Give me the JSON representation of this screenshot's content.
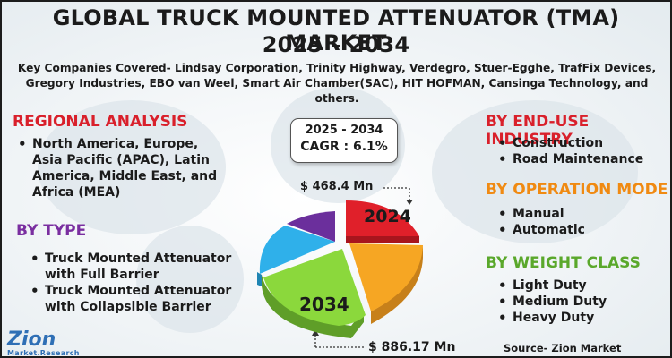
{
  "header": {
    "title_line1": "GLOBAL TRUCK MOUNTED ATTENUATOR (TMA) MARKET",
    "title_line2": "2025 – 2034",
    "companies": "Key Companies Covered- Lindsay Corporation, Trinity Highway, Verdegro, Stuer-Egghe, TrafFix Devices, Gregory Industries, EBO van Weel, Smart Air Chamber(SAC), HIT HOFMAN, Cansinga Technology, and others."
  },
  "regional": {
    "heading": "REGIONAL ANALYSIS",
    "items": [
      "North America, Europe, Asia Pacific (APAC), Latin America, Middle East, and Africa (MEA)"
    ]
  },
  "by_type": {
    "heading": "BY TYPE",
    "items": [
      "Truck Mounted Attenuator with Full Barrier",
      "Truck Mounted Attenuator with Collapsible Barrier"
    ]
  },
  "end_use": {
    "heading": "BY END-USE INDUSTRY",
    "items": [
      "Construction",
      "Road Maintenance"
    ]
  },
  "operation": {
    "heading": "BY OPERATION MODE",
    "items": [
      "Manual",
      "Automatic"
    ]
  },
  "weight": {
    "heading": "BY WEIGHT CLASS",
    "items": [
      "Light Duty",
      "Medium Duty",
      "Heavy Duty"
    ]
  },
  "cagr": {
    "period": "2025 - 2034",
    "value": "CAGR : 6.1%"
  },
  "pie": {
    "label_2024": "2024",
    "label_2034": "2034",
    "value_2024": "$ 468.4 Mn",
    "value_2034": "$ 886.17 Mn",
    "colors": [
      "#e0202a",
      "#f6a623",
      "#8bd83c",
      "#2fb0ea",
      "#6b2f9c"
    ]
  },
  "logo": {
    "main": "Zion",
    "sub": "Market.Research"
  },
  "source": "Source- Zion Market Research"
}
